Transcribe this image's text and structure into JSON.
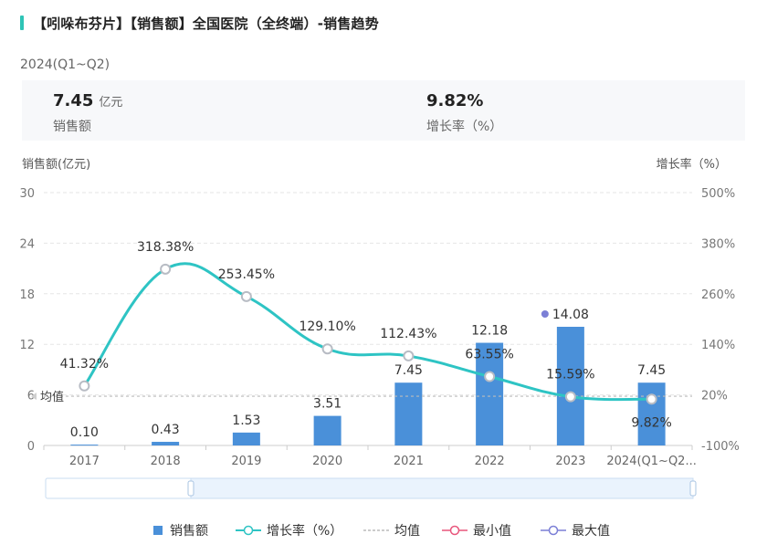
{
  "header": {
    "title": "【吲哚布芬片】【销售额】全国医院（全终端）-销售趋势",
    "period": "2024(Q1~Q2)"
  },
  "stats": [
    {
      "value": "7.45",
      "unit": "亿元",
      "label": "销售额"
    },
    {
      "value": "9.82%",
      "unit": "",
      "label": "增长率（%）"
    }
  ],
  "chart_data": {
    "type": "bar",
    "categories": [
      "2017",
      "2018",
      "2019",
      "2020",
      "2021",
      "2022",
      "2023",
      "2024(Q1~Q2..."
    ],
    "series": [
      {
        "name": "销售额",
        "type": "bar",
        "axis": "left",
        "values": [
          0.1,
          0.43,
          1.53,
          3.51,
          7.45,
          12.18,
          14.08,
          7.45
        ],
        "labels": [
          "0.10",
          "0.43",
          "1.53",
          "3.51",
          "7.45",
          "12.18",
          "14.08",
          "7.45"
        ]
      },
      {
        "name": "增长率（%）",
        "type": "line",
        "axis": "right",
        "values": [
          41.32,
          318.38,
          253.45,
          129.1,
          112.43,
          63.55,
          15.59,
          9.82
        ],
        "labels": [
          "41.32%",
          "318.38%",
          "253.45%",
          "129.10%",
          "112.43%",
          "63.55%",
          "15.59%",
          "9.82%"
        ]
      }
    ],
    "left_axis": {
      "title": "销售额(亿元)",
      "min": 0,
      "max": 30,
      "ticks": [
        "0",
        "6",
        "12",
        "18",
        "24",
        "30"
      ],
      "tick_values": [
        0,
        6,
        12,
        18,
        24,
        30
      ]
    },
    "right_axis": {
      "title": "增长率（%）",
      "min": -100,
      "max": 500,
      "ticks": [
        "-100%",
        "20%",
        "140%",
        "260%",
        "380%",
        "500%"
      ],
      "tick_values": [
        -100,
        20,
        140,
        260,
        380,
        500
      ]
    },
    "average": {
      "label": "均值",
      "value": 5.84
    },
    "max_marker_index": 6,
    "grid": true,
    "legend_position": "bottom",
    "colors": {
      "bar": "#4a90d9",
      "line": "#2ec4c4",
      "average": "#bbbbbb",
      "min": "#e8567c",
      "max": "#7b7fd6",
      "slider_fill": "#eaf3fd",
      "slider_border": "#c9ddf2"
    }
  },
  "legend": [
    {
      "name": "销售额",
      "icon": "bar-square"
    },
    {
      "name": "增长率（%）",
      "icon": "line-circle"
    },
    {
      "name": "均值",
      "icon": "dashed-line"
    },
    {
      "name": "最小值",
      "icon": "pink-circle"
    },
    {
      "name": "最大值",
      "icon": "purple-circle"
    }
  ]
}
